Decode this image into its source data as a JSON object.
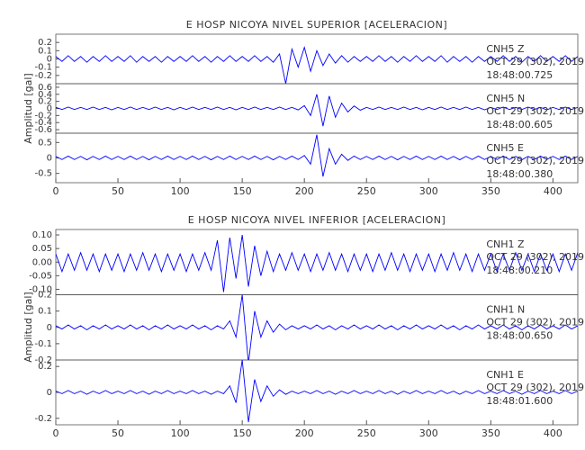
{
  "chart_data": [
    {
      "type": "seismogram",
      "title": "E HOSP NICOYA NIVEL SUPERIOR [ACELERACION]",
      "ylabel": "Amplitud [gal]",
      "xlim": [
        0,
        420
      ],
      "xticks": [
        0,
        50,
        100,
        150,
        200,
        250,
        300,
        350,
        400
      ],
      "x": [
        0,
        5,
        10,
        15,
        20,
        25,
        30,
        35,
        40,
        45,
        50,
        55,
        60,
        65,
        70,
        75,
        80,
        85,
        90,
        95,
        100,
        105,
        110,
        115,
        120,
        125,
        130,
        135,
        140,
        145,
        150,
        155,
        160,
        165,
        170,
        175,
        180,
        185,
        190,
        195,
        200,
        205,
        210,
        215,
        220,
        225,
        230,
        235,
        240,
        245,
        250,
        255,
        260,
        265,
        270,
        275,
        280,
        285,
        290,
        295,
        300,
        305,
        310,
        315,
        320,
        325,
        330,
        335,
        340,
        345,
        350,
        355,
        360,
        365,
        370,
        375,
        380,
        385,
        390,
        395,
        400,
        405,
        410,
        415,
        420
      ],
      "series": [
        {
          "name": "CNH5   Z",
          "date": "OCT 29 (302), 2019",
          "time": "18:48:00.725",
          "color": "#0000ff",
          "ylim": [
            -0.3,
            0.3
          ],
          "yticks": [
            -0.2,
            -0.1,
            0.0,
            0.1,
            0.2
          ],
          "values": [
            0.03,
            -0.03,
            0.04,
            -0.03,
            0.03,
            -0.04,
            0.03,
            -0.03,
            0.04,
            -0.03,
            0.03,
            -0.03,
            0.04,
            -0.04,
            0.03,
            -0.03,
            0.03,
            -0.04,
            0.03,
            -0.03,
            0.03,
            -0.03,
            0.04,
            -0.03,
            0.03,
            -0.04,
            0.03,
            -0.03,
            0.04,
            -0.03,
            0.03,
            -0.03,
            0.04,
            -0.03,
            0.03,
            -0.04,
            0.06,
            -0.3,
            0.12,
            -0.1,
            0.14,
            -0.15,
            0.1,
            -0.08,
            0.06,
            -0.05,
            0.04,
            -0.04,
            0.03,
            -0.03,
            0.03,
            -0.03,
            0.04,
            -0.03,
            0.03,
            -0.04,
            0.03,
            -0.03,
            0.04,
            -0.03,
            0.03,
            -0.03,
            0.04,
            -0.04,
            0.03,
            -0.03,
            0.03,
            -0.04,
            0.03,
            -0.03,
            0.03,
            -0.03,
            0.04,
            -0.03,
            0.03,
            -0.04,
            0.03,
            -0.03,
            0.04,
            -0.03,
            0.03,
            -0.03,
            0.04,
            -0.03,
            0.03
          ]
        },
        {
          "name": "CNH5   N",
          "date": "OCT 29 (302), 2019",
          "time": "18:48:00.605",
          "color": "#0000ff",
          "ylim": [
            -0.7,
            0.7
          ],
          "yticks": [
            -0.6,
            -0.4,
            -0.2,
            0.0,
            0.2,
            0.4,
            0.6
          ],
          "values": [
            0.03,
            -0.03,
            0.04,
            -0.03,
            0.03,
            -0.03,
            0.04,
            -0.03,
            0.03,
            -0.04,
            0.03,
            -0.03,
            0.04,
            -0.03,
            0.03,
            -0.03,
            0.04,
            -0.03,
            0.03,
            -0.04,
            0.03,
            -0.03,
            0.04,
            -0.03,
            0.03,
            -0.03,
            0.04,
            -0.03,
            0.03,
            -0.04,
            0.03,
            -0.03,
            0.04,
            -0.03,
            0.03,
            -0.03,
            0.04,
            -0.03,
            0.03,
            -0.04,
            0.08,
            -0.2,
            0.4,
            -0.5,
            0.35,
            -0.25,
            0.15,
            -0.1,
            0.07,
            -0.05,
            0.03,
            -0.03,
            0.04,
            -0.03,
            0.03,
            -0.03,
            0.04,
            -0.03,
            0.03,
            -0.04,
            0.03,
            -0.03,
            0.04,
            -0.03,
            0.03,
            -0.03,
            0.04,
            -0.03,
            0.03,
            -0.04,
            0.03,
            -0.03,
            0.04,
            -0.03,
            0.03,
            -0.03,
            0.04,
            -0.03,
            0.03,
            -0.04,
            0.03,
            -0.03,
            0.04,
            -0.03,
            0.03
          ]
        },
        {
          "name": "CNH5   E",
          "date": "OCT 29 (302), 2019",
          "time": "18:48:00.380",
          "color": "#0000ff",
          "ylim": [
            -0.8,
            0.8
          ],
          "yticks": [
            -0.5,
            0.0,
            0.5
          ],
          "values": [
            0.05,
            -0.05,
            0.06,
            -0.05,
            0.05,
            -0.06,
            0.05,
            -0.05,
            0.06,
            -0.05,
            0.05,
            -0.05,
            0.06,
            -0.05,
            0.05,
            -0.06,
            0.05,
            -0.05,
            0.06,
            -0.05,
            0.05,
            -0.05,
            0.06,
            -0.05,
            0.05,
            -0.06,
            0.05,
            -0.05,
            0.06,
            -0.05,
            0.05,
            -0.05,
            0.06,
            -0.05,
            0.05,
            -0.06,
            0.05,
            -0.05,
            0.06,
            -0.05,
            0.08,
            -0.2,
            0.75,
            -0.6,
            0.3,
            -0.2,
            0.12,
            -0.08,
            0.06,
            -0.05,
            0.05,
            -0.05,
            0.06,
            -0.05,
            0.05,
            -0.06,
            0.05,
            -0.05,
            0.06,
            -0.05,
            0.05,
            -0.05,
            0.06,
            -0.05,
            0.05,
            -0.06,
            0.05,
            -0.05,
            0.06,
            -0.05,
            0.05,
            -0.05,
            0.06,
            -0.05,
            0.05,
            -0.06,
            0.05,
            -0.05,
            0.06,
            -0.05,
            0.05,
            -0.05,
            0.06,
            -0.05,
            0.05
          ]
        }
      ]
    },
    {
      "type": "seismogram",
      "title": "E HOSP NICOYA NIVEL INFERIOR [ACELERACION]",
      "ylabel": "Amplitud [gal]",
      "xlim": [
        0,
        420
      ],
      "xticks": [
        0,
        50,
        100,
        150,
        200,
        250,
        300,
        350,
        400
      ],
      "x": [
        0,
        5,
        10,
        15,
        20,
        25,
        30,
        35,
        40,
        45,
        50,
        55,
        60,
        65,
        70,
        75,
        80,
        85,
        90,
        95,
        100,
        105,
        110,
        115,
        120,
        125,
        130,
        135,
        140,
        145,
        150,
        155,
        160,
        165,
        170,
        175,
        180,
        185,
        190,
        195,
        200,
        205,
        210,
        215,
        220,
        225,
        230,
        235,
        240,
        245,
        250,
        255,
        260,
        265,
        270,
        275,
        280,
        285,
        290,
        295,
        300,
        305,
        310,
        315,
        320,
        325,
        330,
        335,
        340,
        345,
        350,
        355,
        360,
        365,
        370,
        375,
        380,
        385,
        390,
        395,
        400,
        405,
        410,
        415,
        420
      ],
      "series": [
        {
          "name": "CNH1   Z",
          "date": "OCT 29 (302), 2019",
          "time": "18:48:00.210",
          "color": "#0000ff",
          "ylim": [
            -0.12,
            0.12
          ],
          "yticks": [
            {
              "value": -0.1,
              "label": "-0.10"
            },
            {
              "value": -0.05,
              "label": "-0.05"
            },
            {
              "value": 0,
              "label": "0.00"
            },
            {
              "value": 0.05,
              "label": "0.05"
            },
            {
              "value": 0.1,
              "label": "0.10"
            }
          ],
          "values": [
            0.03,
            -0.035,
            0.03,
            -0.03,
            0.035,
            -0.03,
            0.03,
            -0.035,
            0.03,
            -0.03,
            0.03,
            -0.035,
            0.03,
            -0.03,
            0.035,
            -0.03,
            0.03,
            -0.035,
            0.03,
            -0.03,
            0.03,
            -0.035,
            0.03,
            -0.03,
            0.035,
            -0.03,
            0.08,
            -0.11,
            0.09,
            -0.06,
            0.1,
            -0.09,
            0.06,
            -0.05,
            0.04,
            -0.035,
            0.03,
            -0.03,
            0.035,
            -0.03,
            0.03,
            -0.035,
            0.03,
            -0.03,
            0.035,
            -0.03,
            0.03,
            -0.035,
            0.03,
            -0.03,
            0.03,
            -0.035,
            0.03,
            -0.03,
            0.035,
            -0.03,
            0.03,
            -0.035,
            0.03,
            -0.03,
            0.03,
            -0.035,
            0.03,
            -0.03,
            0.035,
            -0.03,
            0.03,
            -0.035,
            0.03,
            -0.03,
            0.03,
            -0.035,
            0.03,
            -0.03,
            0.035,
            -0.03,
            0.03,
            -0.035,
            0.03,
            -0.03,
            0.03,
            -0.035,
            0.03,
            -0.03,
            0.035
          ]
        },
        {
          "name": "CNH1   N",
          "date": "OCT 29 (302), 2019",
          "time": "18:48:00.650",
          "color": "#0000ff",
          "ylim": [
            -0.2,
            0.2
          ],
          "yticks": [
            -0.2,
            -0.1,
            0.0,
            0.1,
            0.2
          ],
          "values": [
            0.01,
            -0.01,
            0.015,
            -0.01,
            0.01,
            -0.015,
            0.01,
            -0.01,
            0.015,
            -0.01,
            0.01,
            -0.01,
            0.015,
            -0.01,
            0.01,
            -0.015,
            0.01,
            -0.01,
            0.015,
            -0.01,
            0.01,
            -0.01,
            0.015,
            -0.01,
            0.01,
            -0.015,
            0.01,
            -0.01,
            0.04,
            -0.06,
            0.2,
            -0.22,
            0.1,
            -0.06,
            0.04,
            -0.03,
            0.02,
            -0.015,
            0.01,
            -0.01,
            0.01,
            -0.01,
            0.015,
            -0.01,
            0.01,
            -0.015,
            0.01,
            -0.01,
            0.015,
            -0.01,
            0.01,
            -0.01,
            0.015,
            -0.01,
            0.01,
            -0.015,
            0.01,
            -0.01,
            0.015,
            -0.01,
            0.01,
            -0.01,
            0.015,
            -0.01,
            0.01,
            -0.015,
            0.01,
            -0.01,
            0.015,
            -0.01,
            0.01,
            -0.01,
            0.015,
            -0.01,
            0.01,
            -0.015,
            0.01,
            -0.01,
            0.015,
            -0.01,
            0.01,
            -0.01,
            0.015,
            -0.01,
            0.01
          ]
        },
        {
          "name": "CNH1   E",
          "date": "OCT 29 (302), 2019",
          "time": "18:48:01.600",
          "color": "#0000ff",
          "ylim": [
            -0.25,
            0.25
          ],
          "yticks": [
            -0.2,
            0.0,
            0.2
          ],
          "values": [
            0.01,
            -0.01,
            0.015,
            -0.01,
            0.01,
            -0.015,
            0.01,
            -0.01,
            0.015,
            -0.01,
            0.01,
            -0.01,
            0.015,
            -0.01,
            0.01,
            -0.015,
            0.01,
            -0.01,
            0.015,
            -0.01,
            0.01,
            -0.01,
            0.015,
            -0.01,
            0.01,
            -0.015,
            0.01,
            -0.01,
            0.05,
            -0.08,
            0.25,
            -0.23,
            0.1,
            -0.07,
            0.05,
            -0.03,
            0.02,
            -0.015,
            0.01,
            -0.01,
            0.01,
            -0.01,
            0.015,
            -0.01,
            0.01,
            -0.015,
            0.01,
            -0.01,
            0.015,
            -0.01,
            0.01,
            -0.01,
            0.015,
            -0.01,
            0.01,
            -0.015,
            0.01,
            -0.01,
            0.015,
            -0.01,
            0.01,
            -0.01,
            0.015,
            -0.01,
            0.01,
            -0.015,
            0.01,
            -0.01,
            0.015,
            -0.01,
            0.01,
            -0.01,
            0.015,
            -0.01,
            0.01,
            -0.015,
            0.01,
            -0.01,
            0.015,
            -0.01,
            0.01,
            -0.01,
            0.015,
            -0.01,
            0.01
          ]
        }
      ]
    }
  ]
}
